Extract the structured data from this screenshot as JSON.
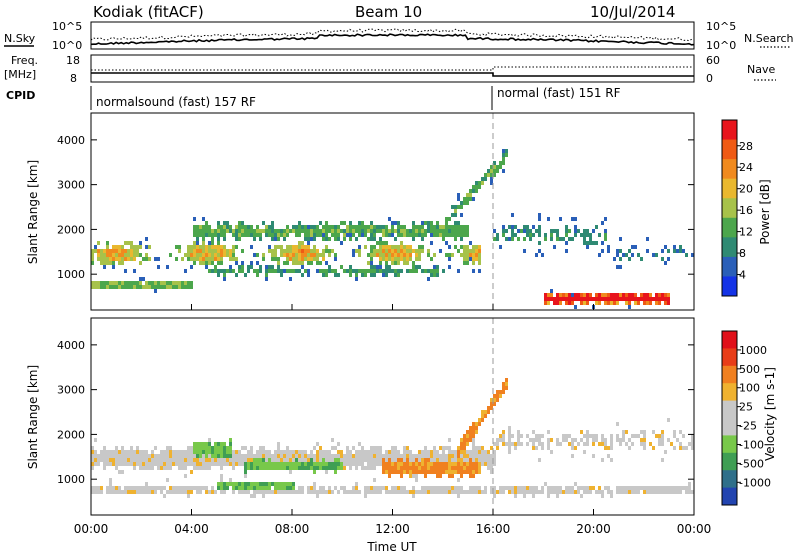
{
  "header": {
    "station": "Kodiak (fitACF)",
    "beam": "Beam 10",
    "date": "10/Jul/2014"
  },
  "panels": {
    "nsky": {
      "label": "N.Sky",
      "ticks": [
        "10^5",
        "10^0"
      ],
      "right_label": "N.Search",
      "right_ticks": [
        "10^5",
        "10^0"
      ]
    },
    "freq": {
      "label1": "Freq.",
      "label2": "[MHz]",
      "ticks": [
        "18",
        "8"
      ],
      "right_label": "Nave",
      "right_ticks": [
        "60",
        "0"
      ]
    },
    "cpid": {
      "label": "CPID",
      "modes": [
        {
          "name": "normalsound (fast) 157 RF",
          "start_hour": 0
        },
        {
          "name": "normal (fast) 151 RF",
          "start_hour": 16
        }
      ]
    }
  },
  "chart_data": [
    {
      "type": "heatmap",
      "ylabel": "Slant Range [km]",
      "yticks": [
        1000,
        2000,
        3000,
        4000
      ],
      "ylim": [
        200,
        4600
      ],
      "xlim": [
        0,
        24
      ],
      "colorbar": {
        "label": "Power [dB]",
        "ticks": [
          "4",
          "8",
          "12",
          "16",
          "20",
          "24",
          "28"
        ],
        "colors": [
          "#1433e6",
          "#2a5fb8",
          "#2f8a73",
          "#4ca64c",
          "#a7c24a",
          "#e9b82f",
          "#f08a1e",
          "#ef5a14",
          "#e8141c"
        ]
      }
    },
    {
      "type": "heatmap",
      "ylabel": "Slant Range [km]",
      "yticks": [
        1000,
        2000,
        3000,
        4000
      ],
      "ylim": [
        200,
        4600
      ],
      "xlim": [
        0,
        24
      ],
      "xlabel": "Time UT",
      "xticks": [
        "00:00",
        "04:00",
        "08:00",
        "12:00",
        "16:00",
        "20:00",
        "00:00"
      ],
      "colorbar": {
        "label": "Velocity [m s-1]",
        "ticks": [
          "1000",
          "500",
          "100",
          "25",
          "-25",
          "-100",
          "-500",
          "-1000"
        ],
        "colors": [
          "#2244b0",
          "#2f6f8a",
          "#3f9e54",
          "#78c84a",
          "#c8c8c8",
          "#c8c8c8",
          "#efb230",
          "#f08020",
          "#e83d18",
          "#e0101a"
        ]
      }
    }
  ]
}
